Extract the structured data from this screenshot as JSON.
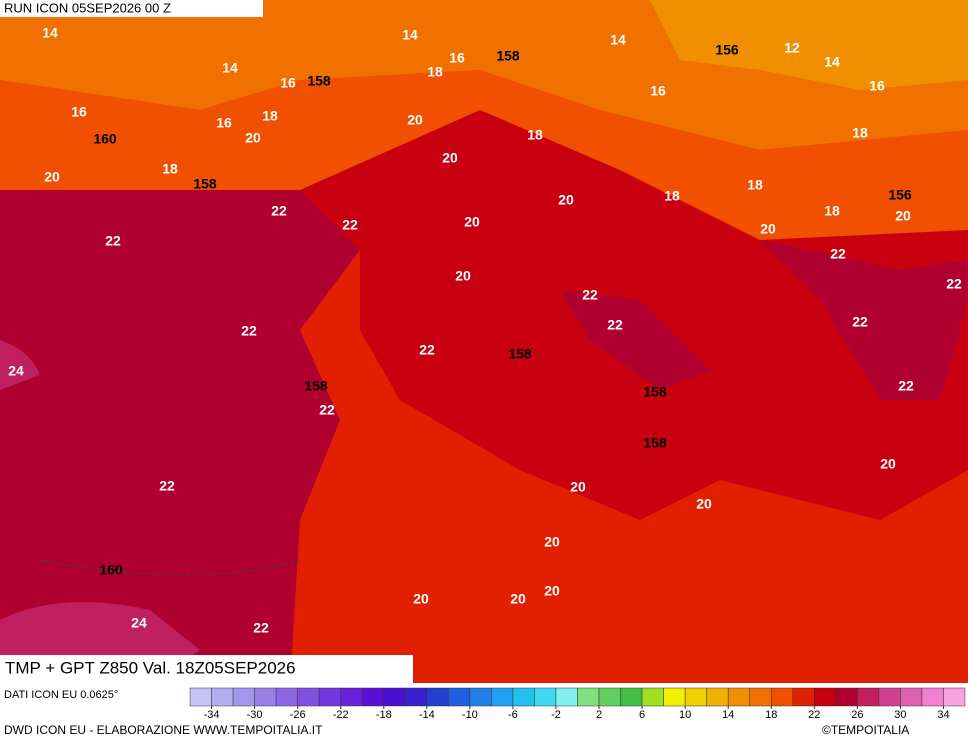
{
  "header": {
    "run": "RUN ICON 05SEP2026 00 Z"
  },
  "map": {
    "temperature_labels": [
      14,
      14,
      14,
      12,
      14,
      14,
      16,
      18,
      16,
      16,
      16,
      16,
      16,
      18,
      20,
      20,
      18,
      18,
      20,
      18,
      20,
      18,
      18,
      20,
      18,
      20,
      22,
      22,
      20,
      20,
      22,
      22,
      20,
      22,
      22,
      22,
      22,
      22,
      22,
      24,
      22,
      22,
      20,
      22,
      20,
      20,
      20,
      20,
      20,
      20,
      24,
      22
    ],
    "geopotential_labels": [
      158,
      156,
      158,
      160,
      158,
      156,
      158,
      158,
      158,
      158,
      160
    ]
  },
  "footer": {
    "product": "TMP + GPT Z850 Val. 18Z05SEP2026",
    "source": "DATI ICON EU 0.0625°",
    "credit": "DWD ICON EU - ELABORAZIONE WWW.TEMPOITALIA.IT",
    "copyright": "©TEMPOITALIA"
  },
  "colorbar": {
    "range": [
      -36,
      36
    ],
    "colors": [
      "#c4c4f4",
      "#b4aef0",
      "#a496ec",
      "#9a80e8",
      "#8c66e4",
      "#8050e0",
      "#7438dc",
      "#6a20d8",
      "#5a10d4",
      "#4a10d0",
      "#3a20d0",
      "#2040d0",
      "#2060e0",
      "#2080e8",
      "#20a0f0",
      "#20c0f0",
      "#40d8f0",
      "#80f0f0",
      "#80e080",
      "#60d060",
      "#40c040",
      "#a0e020",
      "#f0f000",
      "#f0d000",
      "#f0b000",
      "#f09000",
      "#f07000",
      "#f05000",
      "#e02000",
      "#c80010",
      "#b00030",
      "#c02060",
      "#d04090",
      "#e060b0",
      "#f080d0",
      "#f8a0e0"
    ],
    "ticks": [
      -34,
      -30,
      -26,
      -22,
      -18,
      -14,
      -10,
      -6,
      -2,
      2,
      6,
      10,
      14,
      18,
      22,
      26,
      30,
      34
    ]
  }
}
